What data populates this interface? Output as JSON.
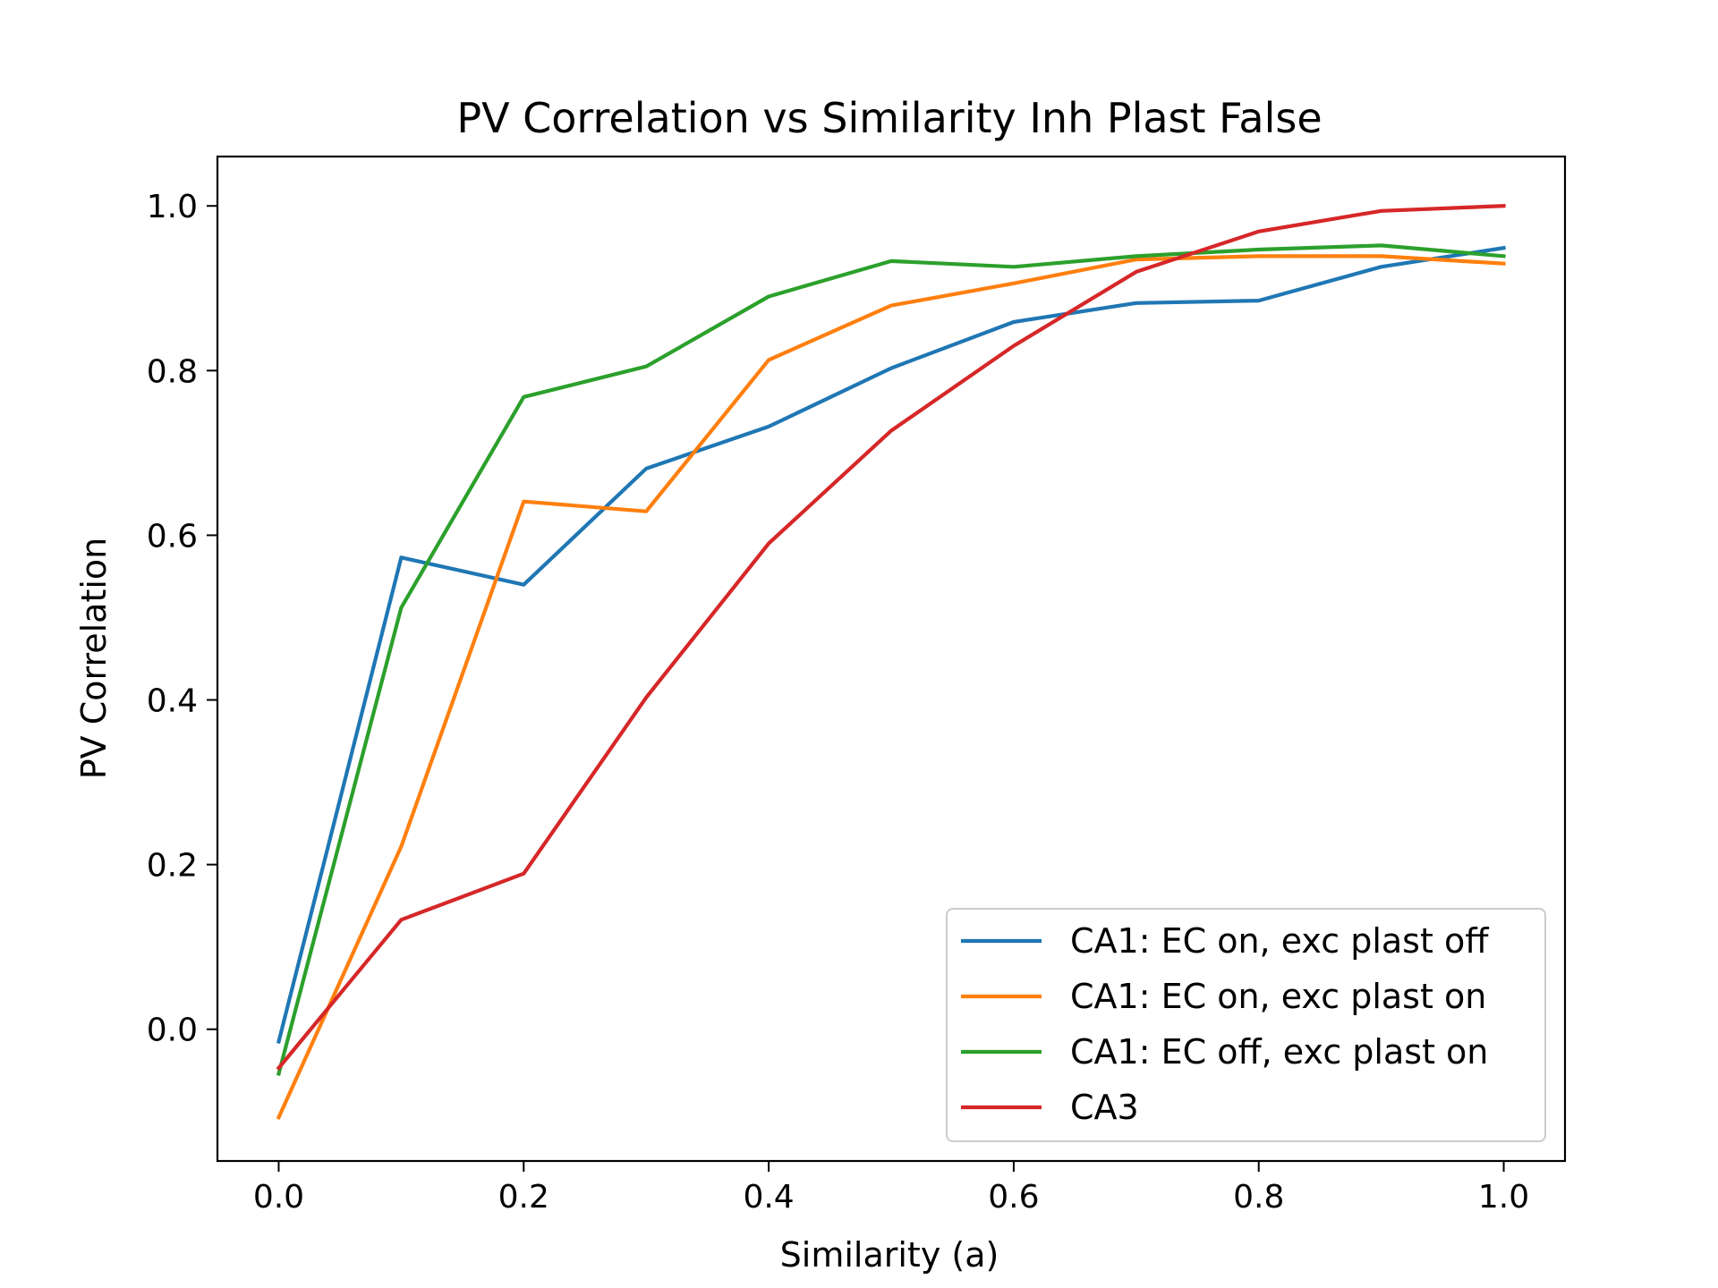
{
  "chart_data": {
    "type": "line",
    "title": "PV Correlation vs Similarity Inh Plast False",
    "xlabel": "Similarity (a)",
    "ylabel": "PV Correlation",
    "xlim": [
      -0.05,
      1.05
    ],
    "ylim": [
      -0.16,
      1.06
    ],
    "x_ticks": [
      0.0,
      0.2,
      0.4,
      0.6,
      0.8,
      1.0
    ],
    "x_tick_labels": [
      "0.0",
      "0.2",
      "0.4",
      "0.6",
      "0.8",
      "1.0"
    ],
    "y_ticks": [
      0.0,
      0.2,
      0.4,
      0.6,
      0.8,
      1.0
    ],
    "y_tick_labels": [
      "0.0",
      "0.2",
      "0.4",
      "0.6",
      "0.8",
      "1.0"
    ],
    "grid": false,
    "legend_position": "lower-right",
    "x": [
      0.0,
      0.1,
      0.2,
      0.3,
      0.4,
      0.5,
      0.6,
      0.7,
      0.8,
      0.9,
      1.0
    ],
    "series": [
      {
        "name": "CA1: EC on, exc plast off",
        "color": "#1f77b4",
        "values": [
          -0.015,
          0.573,
          0.54,
          0.681,
          0.732,
          0.803,
          0.859,
          0.882,
          0.885,
          0.926,
          0.949
        ]
      },
      {
        "name": "CA1: EC on, exc plast on",
        "color": "#ff7f0e",
        "values": [
          -0.107,
          0.222,
          0.641,
          0.629,
          0.813,
          0.879,
          0.906,
          0.935,
          0.939,
          0.939,
          0.93
        ]
      },
      {
        "name": "CA1: EC off, exc plast on",
        "color": "#2ca02c",
        "values": [
          -0.054,
          0.512,
          0.768,
          0.805,
          0.89,
          0.933,
          0.926,
          0.939,
          0.947,
          0.952,
          0.939
        ]
      },
      {
        "name": "CA3",
        "color": "#d62728",
        "values": [
          -0.047,
          0.133,
          0.189,
          0.403,
          0.59,
          0.727,
          0.83,
          0.92,
          0.969,
          0.994,
          1.0
        ]
      }
    ]
  }
}
